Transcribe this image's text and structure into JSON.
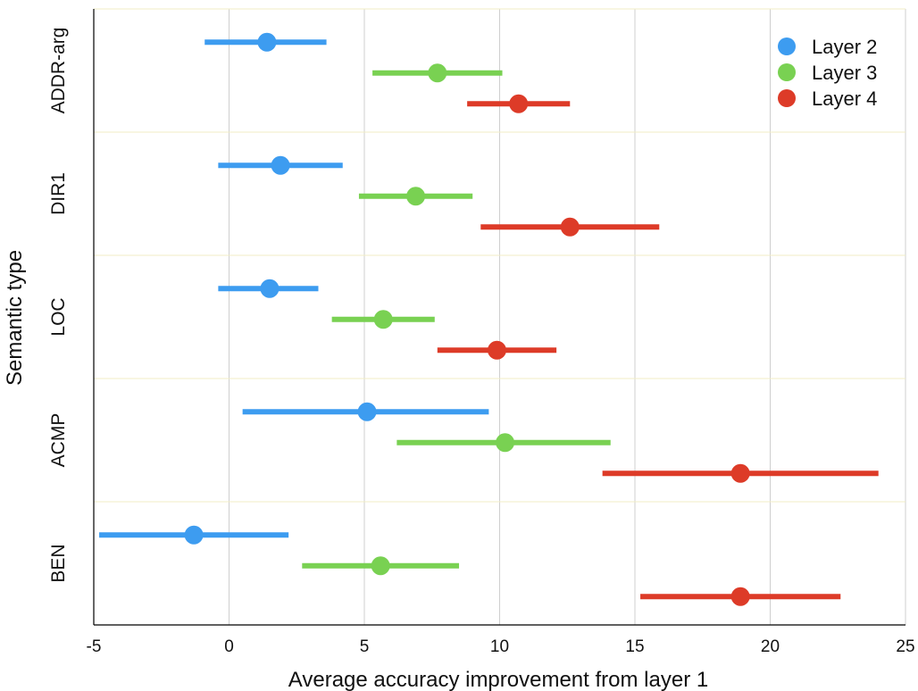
{
  "chart_data": {
    "type": "scatter",
    "subtype": "dot-and-whisker",
    "orientation": "horizontal",
    "xlabel": "Average accuracy improvement from layer 1",
    "ylabel": "Semantic type",
    "xlim": [
      -5,
      25
    ],
    "xticks": [
      -5,
      0,
      5,
      10,
      15,
      20,
      25
    ],
    "xtick_labels": [
      "-5",
      "0",
      "5",
      "10",
      "15",
      "20",
      "25"
    ],
    "grid": true,
    "legend_position": "top-right",
    "categories": [
      "ADDR-arg",
      "DIR1",
      "LOC",
      "ACMP",
      "BEN"
    ],
    "series": [
      {
        "name": "Layer 2",
        "color": "#3d9cf0",
        "points": [
          {
            "category": "ADDR-arg",
            "mean": 1.4,
            "low": -0.9,
            "high": 3.6
          },
          {
            "category": "DIR1",
            "mean": 1.9,
            "low": -0.4,
            "high": 4.2
          },
          {
            "category": "LOC",
            "mean": 1.5,
            "low": -0.4,
            "high": 3.3
          },
          {
            "category": "ACMP",
            "mean": 5.1,
            "low": 0.5,
            "high": 9.6
          },
          {
            "category": "BEN",
            "mean": -1.3,
            "low": -4.8,
            "high": 2.2
          }
        ]
      },
      {
        "name": "Layer 3",
        "color": "#79d152",
        "points": [
          {
            "category": "ADDR-arg",
            "mean": 7.7,
            "low": 5.3,
            "high": 10.1
          },
          {
            "category": "DIR1",
            "mean": 6.9,
            "low": 4.8,
            "high": 9.0
          },
          {
            "category": "LOC",
            "mean": 5.7,
            "low": 3.8,
            "high": 7.6
          },
          {
            "category": "ACMP",
            "mean": 10.2,
            "low": 6.2,
            "high": 14.1
          },
          {
            "category": "BEN",
            "mean": 5.6,
            "low": 2.7,
            "high": 8.5
          }
        ]
      },
      {
        "name": "Layer 4",
        "color": "#dd3b28",
        "points": [
          {
            "category": "ADDR-arg",
            "mean": 10.7,
            "low": 8.8,
            "high": 12.6
          },
          {
            "category": "DIR1",
            "mean": 12.6,
            "low": 9.3,
            "high": 15.9
          },
          {
            "category": "LOC",
            "mean": 9.9,
            "low": 7.7,
            "high": 12.1
          },
          {
            "category": "ACMP",
            "mean": 18.9,
            "low": 13.8,
            "high": 24.0
          },
          {
            "category": "BEN",
            "mean": 18.9,
            "low": 15.2,
            "high": 22.6
          }
        ]
      }
    ]
  }
}
